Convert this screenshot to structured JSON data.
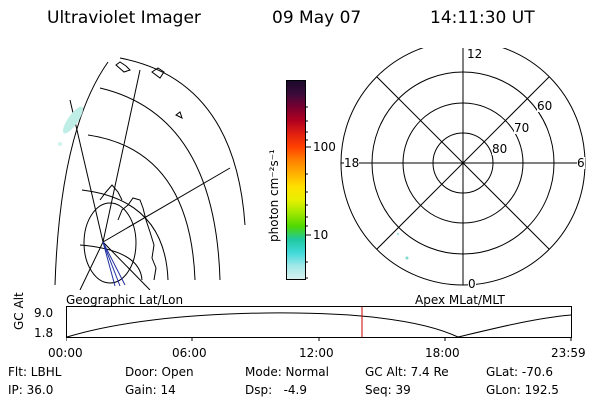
{
  "header": {
    "title": "Ultraviolet Imager",
    "date": "09 May 07",
    "time": "14:11:30 UT"
  },
  "colorbar": {
    "unit_label": "photon cm⁻²s⁻¹",
    "ticks": [
      "100",
      "10"
    ],
    "colors": [
      "#1a0a2a",
      "#3b0a3a",
      "#7a0030",
      "#b00020",
      "#e02010",
      "#ff4000",
      "#ff8000",
      "#ffb000",
      "#ffe000",
      "#e8f000",
      "#a0e800",
      "#50d800",
      "#20c8a0",
      "#40d8d8",
      "#a0e8e8",
      "#d8f0f0"
    ]
  },
  "geo_panel": {
    "label": "Geographic Lat/Lon"
  },
  "apex_panel": {
    "label": "Apex MLat/MLT",
    "mlt_labels": {
      "top": "12",
      "left": "18",
      "right": "6",
      "bottom": "0"
    },
    "lat_labels": [
      "60",
      "70",
      "80"
    ]
  },
  "altitude_plot": {
    "ylabel": "GC Alt",
    "yticks": [
      "9.0",
      "1.8"
    ],
    "xticks": [
      "00:00",
      "06:00",
      "12:00",
      "18:00",
      "23:59"
    ],
    "current_time_marker_color": "#cc0000"
  },
  "info_rows": [
    {
      "flt": "Flt: LBHL",
      "door": "Door: Open",
      "mode": "Mode: Normal",
      "gcalt": "GC Alt: 7.4 Re",
      "glat": "GLat: -70.6"
    },
    {
      "ip": "IP: 36.0",
      "gain": "Gain: 14",
      "dsp": "Dsp:   -4.9",
      "seq": "Seq: 39",
      "glon": "GLon: 192.5"
    }
  ]
}
